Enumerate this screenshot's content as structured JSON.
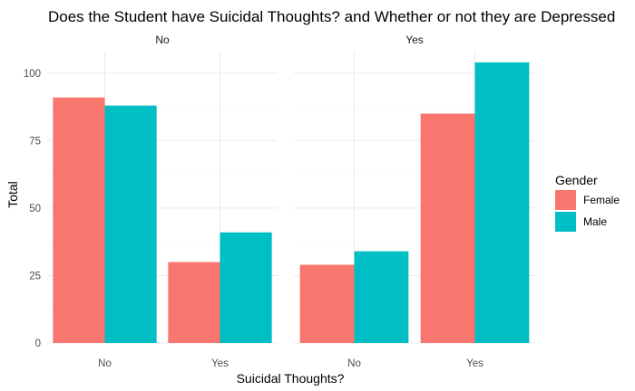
{
  "chart_data": {
    "type": "bar",
    "title": "Does the Student have Suicidal Thoughts? and Whether or not they are Depressed",
    "xlabel": "Suicidal Thoughts?",
    "ylabel": "Total",
    "ylim": [
      0,
      108
    ],
    "yticks": [
      "0",
      "25",
      "50",
      "75",
      "100"
    ],
    "grid": true,
    "legend": {
      "title": "Gender",
      "placement": "right",
      "entries": [
        "Female",
        "Male"
      ]
    },
    "categories": [
      "No",
      "Yes"
    ],
    "series_colors": {
      "Female": "#F8766D",
      "Male": "#00BFC4"
    },
    "panels": [
      {
        "label": "No",
        "series": [
          {
            "name": "Female",
            "values": [
              91,
              30
            ]
          },
          {
            "name": "Male",
            "values": [
              88,
              41
            ]
          }
        ]
      },
      {
        "label": "Yes",
        "series": [
          {
            "name": "Female",
            "values": [
              29,
              85
            ]
          },
          {
            "name": "Male",
            "values": [
              34,
              104
            ]
          }
        ]
      }
    ]
  }
}
